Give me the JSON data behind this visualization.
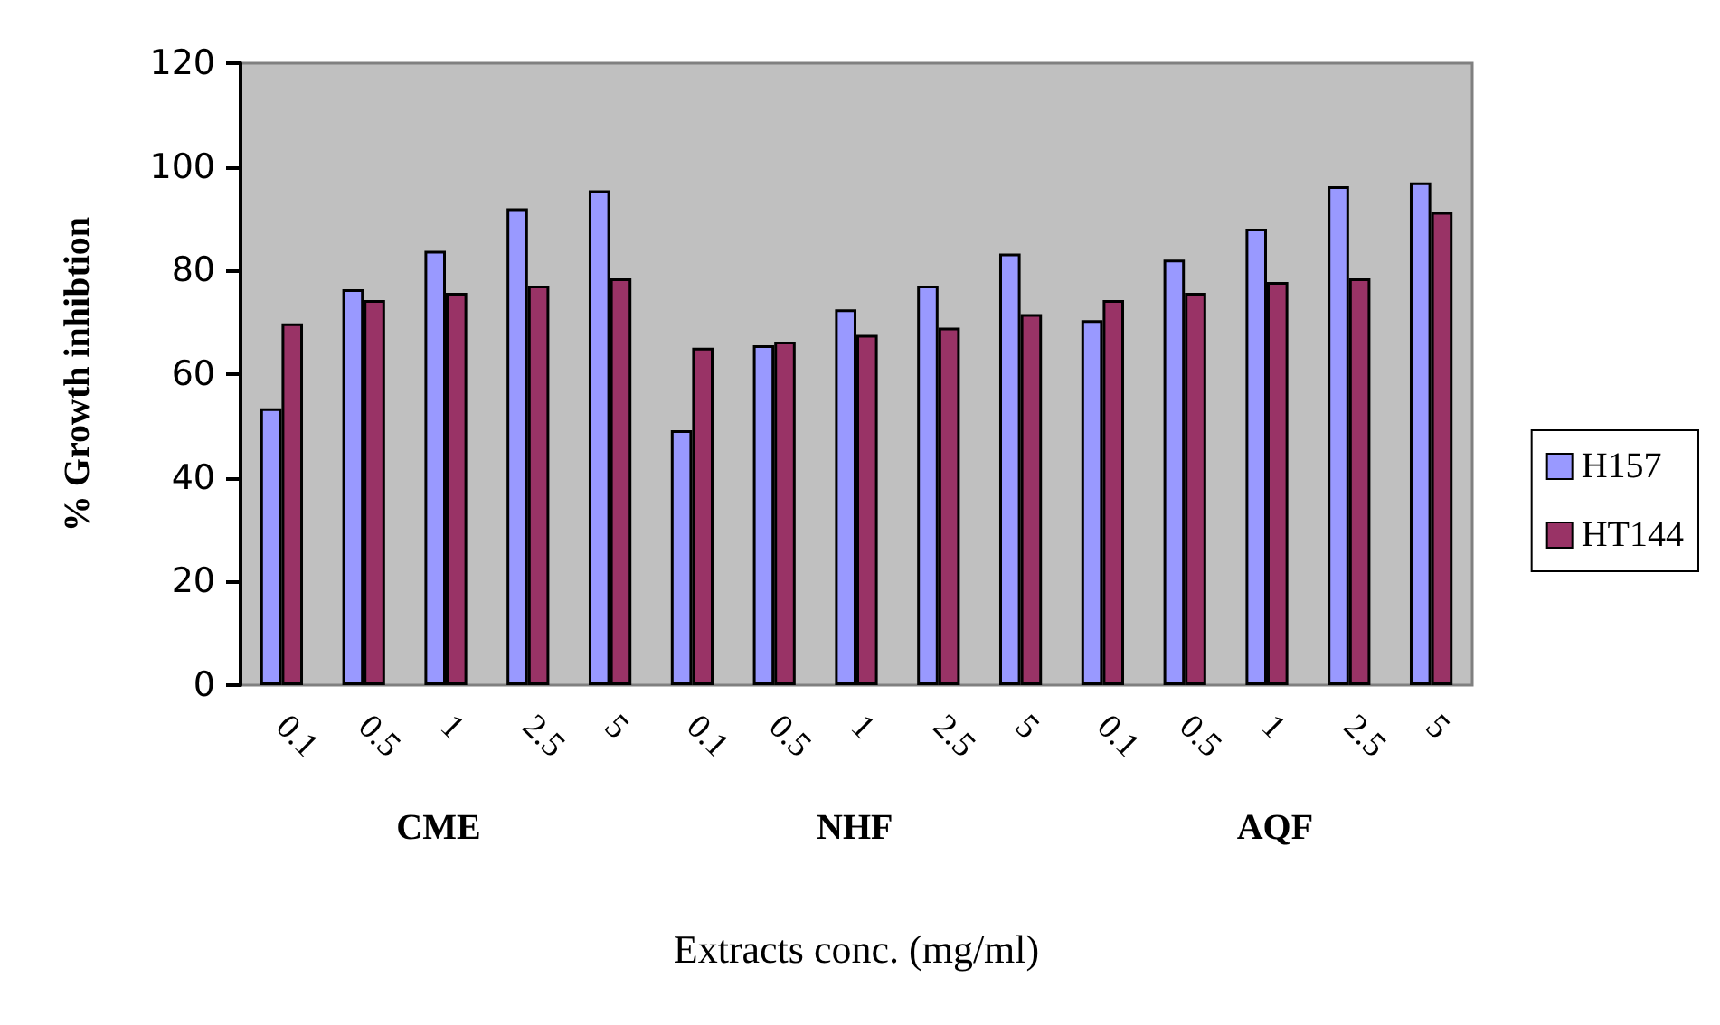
{
  "chart_data": {
    "type": "bar",
    "xlabel": "Extracts conc. (mg/ml)",
    "ylabel": "% Growth inhibtion",
    "categories": [
      "0.1",
      "0.5",
      "1",
      "2.5",
      "5",
      "0.1",
      "0.5",
      "1",
      "2.5",
      "5",
      "0.1",
      "0.5",
      "1",
      "2.5",
      "5"
    ],
    "series": [
      {
        "name": "H157",
        "color": "#9999ff",
        "values": [
          53.4,
          76.4,
          83.8,
          92,
          95.5,
          49.2,
          65.6,
          72.5,
          77.1,
          83.3,
          70.4,
          82.1,
          88.1,
          96.3,
          97
        ]
      },
      {
        "name": "HT144",
        "color": "#993366",
        "values": [
          69.8,
          74.3,
          75.7,
          77.1,
          78.5,
          65.1,
          66.3,
          67.6,
          69,
          71.6,
          74.3,
          75.7,
          77.8,
          78.5,
          91.3
        ]
      }
    ],
    "annotations": [
      "CME",
      "NHF",
      "AQF"
    ],
    "ylim": [
      0,
      120
    ],
    "yticks": [
      0,
      20,
      40,
      60,
      80,
      100,
      120
    ],
    "grid": false,
    "legend": "right"
  }
}
